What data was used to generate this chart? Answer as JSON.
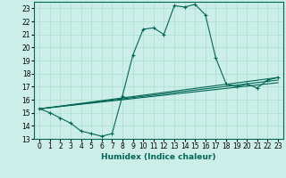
{
  "title": "",
  "xlabel": "Humidex (Indice chaleur)",
  "bg_color": "#cceee8",
  "grid_color": "#aaddcc",
  "line_color": "#006655",
  "xlim": [
    -0.5,
    23.5
  ],
  "ylim": [
    13,
    23.5
  ],
  "xticks": [
    0,
    1,
    2,
    3,
    4,
    5,
    6,
    7,
    8,
    9,
    10,
    11,
    12,
    13,
    14,
    15,
    16,
    17,
    18,
    19,
    20,
    21,
    22,
    23
  ],
  "yticks": [
    13,
    14,
    15,
    16,
    17,
    18,
    19,
    20,
    21,
    22,
    23
  ],
  "series1_x": [
    0,
    1,
    2,
    3,
    4,
    5,
    6,
    7,
    8,
    9,
    10,
    11,
    12,
    13,
    14,
    15,
    16,
    17,
    18,
    19,
    20,
    21,
    22,
    23
  ],
  "series1_y": [
    15.3,
    15.0,
    14.6,
    14.2,
    13.6,
    13.4,
    13.2,
    13.4,
    16.3,
    19.4,
    21.4,
    21.5,
    21.0,
    23.2,
    23.1,
    23.3,
    22.5,
    19.2,
    17.2,
    17.0,
    17.2,
    16.9,
    17.5,
    17.7
  ],
  "series2_x": [
    0,
    23
  ],
  "series2_y": [
    15.3,
    17.7
  ],
  "series3_x": [
    0,
    23
  ],
  "series3_y": [
    15.3,
    17.5
  ],
  "series4_x": [
    0,
    23
  ],
  "series4_y": [
    15.3,
    17.3
  ],
  "xlabel_fontsize": 6.5,
  "tick_fontsize": 5.5
}
